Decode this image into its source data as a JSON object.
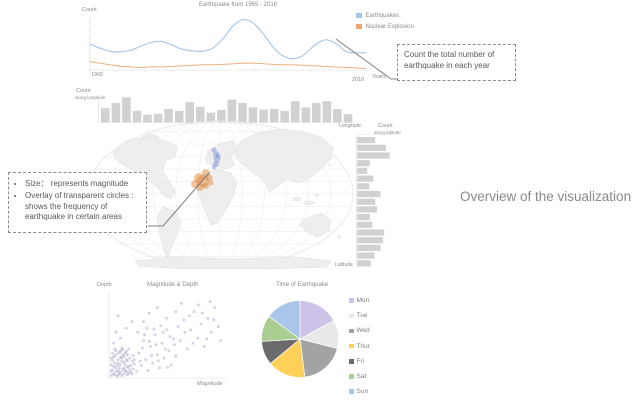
{
  "overview_label": "Overview of the visualization",
  "callouts": {
    "yearly": {
      "text": "Count the total number of earthquake in each year"
    },
    "map_notes": {
      "bullets": [
        "Size：  represents magnitude",
        "Overlay of transparent circles : shows the frequency of earthquake in certain areas"
      ]
    }
  },
  "map": {
    "land_color": "#eeeeee",
    "graticule_color": "#e9e9e9",
    "clusters": [
      {
        "name": "earthquake-cluster-blue",
        "color": "#8093d8",
        "opacity": 0.5,
        "circles": [
          [
            129,
            31,
            2.5
          ],
          [
            131,
            35,
            3
          ],
          [
            132,
            40,
            3.5
          ],
          [
            131,
            45,
            3
          ],
          [
            129,
            48,
            2.5
          ],
          [
            133,
            37,
            2.5
          ]
        ]
      },
      {
        "name": "earthquake-cluster-orange",
        "color": "#e0883a",
        "opacity": 0.5,
        "circles": [
          [
            121,
            54,
            4
          ],
          [
            114,
            59,
            5
          ],
          [
            110,
            65,
            4
          ],
          [
            118,
            62,
            6
          ],
          [
            124,
            59,
            3.5
          ],
          [
            115,
            68,
            4
          ],
          [
            121,
            67,
            3
          ],
          [
            126,
            64,
            2.5
          ]
        ]
      }
    ]
  },
  "chart_data": [
    {
      "type": "line",
      "title": "Earthquake from 1965 - 2016",
      "ylabel": "Count",
      "xlabel": "Years",
      "x_ticks": [
        "1965",
        "2016"
      ],
      "x_range": [
        1965,
        2016
      ],
      "ylim": [
        0,
        1
      ],
      "legend_position": "top-right",
      "series": [
        {
          "name": "Earthquakes",
          "color": "#a5c6e8",
          "values": [
            0.5,
            0.42,
            0.36,
            0.35,
            0.38,
            0.46,
            0.53,
            0.55,
            0.48,
            0.4,
            0.37,
            0.36,
            0.42,
            0.6,
            0.85,
            0.97,
            0.9,
            0.68,
            0.42,
            0.26,
            0.22,
            0.3,
            0.48,
            0.58,
            0.52,
            0.36,
            0.33,
            0.33
          ]
        },
        {
          "name": "Nuclear Explosion",
          "color": "#eca66e",
          "values": [
            0.16,
            0.13,
            0.1,
            0.07,
            0.06,
            0.05,
            0.06,
            0.06,
            0.07,
            0.08,
            0.09,
            0.1,
            0.1,
            0.11,
            0.12,
            0.13,
            0.13,
            0.12,
            0.11,
            0.1,
            0.1,
            0.09,
            0.08,
            0.07,
            0.06,
            0.05,
            0.04,
            0.03
          ]
        }
      ]
    },
    {
      "type": "bar",
      "title": "Count along longitude",
      "ylabel": "Count",
      "ylabel_sub": "along longitude",
      "xlabel": "Longitude",
      "bar_color": "#d1d1d1",
      "ylim": [
        0,
        1
      ],
      "values": [
        0.55,
        0.75,
        0.97,
        0.45,
        0.3,
        0.33,
        0.52,
        0.45,
        0.78,
        0.6,
        0.38,
        0.48,
        0.88,
        0.75,
        0.58,
        0.5,
        0.52,
        0.45,
        0.82,
        0.58,
        0.75,
        0.82,
        0.52,
        0.32
      ]
    },
    {
      "type": "bar",
      "orientation": "horizontal",
      "title": "Count along latitude",
      "ylabel": "Count",
      "ylabel_sub": "along latitude",
      "xlabel": "Latitude",
      "bar_color": "#d1d1d1",
      "ylim": [
        0,
        1
      ],
      "values": [
        0.5,
        0.8,
        0.9,
        0.35,
        0.28,
        0.45,
        0.33,
        0.65,
        0.5,
        0.55,
        0.35,
        0.42,
        0.75,
        0.72,
        0.65,
        0.48,
        0.38
      ]
    },
    {
      "type": "scatter",
      "title": "Magnitude & Depth",
      "xlabel": "Magnitude",
      "ylabel": "Depth",
      "color": "#9688bd",
      "xlim": [
        0,
        1
      ],
      "ylim": [
        0,
        1
      ],
      "points": [
        [
          0.02,
          0.03
        ],
        [
          0.03,
          0.1
        ],
        [
          0.04,
          0.05
        ],
        [
          0.05,
          0.18
        ],
        [
          0.02,
          0.24
        ],
        [
          0.06,
          0.08
        ],
        [
          0.07,
          0.15
        ],
        [
          0.03,
          0.3
        ],
        [
          0.08,
          0.04
        ],
        [
          0.09,
          0.12
        ],
        [
          0.05,
          0.27
        ],
        [
          0.1,
          0.07
        ],
        [
          0.11,
          0.2
        ],
        [
          0.06,
          0.33
        ],
        [
          0.12,
          0.1
        ],
        [
          0.08,
          0.22
        ],
        [
          0.13,
          0.05
        ],
        [
          0.09,
          0.31
        ],
        [
          0.14,
          0.16
        ],
        [
          0.1,
          0.25
        ],
        [
          0.15,
          0.08
        ],
        [
          0.11,
          0.36
        ],
        [
          0.16,
          0.13
        ],
        [
          0.12,
          0.28
        ],
        [
          0.17,
          0.06
        ],
        [
          0.13,
          0.19
        ],
        [
          0.18,
          0.24
        ],
        [
          0.14,
          0.09
        ],
        [
          0.19,
          0.15
        ],
        [
          0.15,
          0.32
        ],
        [
          0.2,
          0.05
        ],
        [
          0.16,
          0.21
        ],
        [
          0.21,
          0.11
        ],
        [
          0.17,
          0.35
        ],
        [
          0.22,
          0.17
        ],
        [
          0.04,
          0.14
        ],
        [
          0.07,
          0.29
        ],
        [
          0.02,
          0.08
        ],
        [
          0.05,
          0.04
        ],
        [
          0.1,
          0.16
        ],
        [
          0.13,
          0.26
        ],
        [
          0.03,
          0.21
        ],
        [
          0.06,
          0.12
        ],
        [
          0.09,
          0.06
        ],
        [
          0.12,
          0.34
        ],
        [
          0.15,
          0.22
        ],
        [
          0.18,
          0.1
        ],
        [
          0.21,
          0.27
        ],
        [
          0.04,
          0.25
        ],
        [
          0.08,
          0.18
        ],
        [
          0.11,
          0.03
        ],
        [
          0.14,
          0.3
        ],
        [
          0.17,
          0.14
        ],
        [
          0.2,
          0.2
        ],
        [
          0.02,
          0.16
        ],
        [
          0.05,
          0.35
        ],
        [
          0.08,
          0.09
        ],
        [
          0.11,
          0.24
        ],
        [
          0.16,
          0.28
        ],
        [
          0.19,
          0.07
        ],
        [
          0.22,
          0.22
        ],
        [
          0.07,
          0.02
        ],
        [
          0.1,
          0.32
        ],
        [
          0.13,
          0.12
        ],
        [
          0.16,
          0.04
        ],
        [
          0.24,
          0.08
        ],
        [
          0.26,
          0.3
        ],
        [
          0.28,
          0.15
        ],
        [
          0.3,
          0.45
        ],
        [
          0.32,
          0.22
        ],
        [
          0.34,
          0.09
        ],
        [
          0.36,
          0.38
        ],
        [
          0.38,
          0.18
        ],
        [
          0.4,
          0.52
        ],
        [
          0.42,
          0.28
        ],
        [
          0.44,
          0.12
        ],
        [
          0.46,
          0.42
        ],
        [
          0.48,
          0.24
        ],
        [
          0.5,
          0.58
        ],
        [
          0.52,
          0.33
        ],
        [
          0.54,
          0.16
        ],
        [
          0.56,
          0.47
        ],
        [
          0.58,
          0.26
        ],
        [
          0.6,
          0.62
        ],
        [
          0.25,
          0.55
        ],
        [
          0.29,
          0.36
        ],
        [
          0.33,
          0.6
        ],
        [
          0.37,
          0.27
        ],
        [
          0.41,
          0.4
        ],
        [
          0.45,
          0.63
        ],
        [
          0.49,
          0.35
        ],
        [
          0.53,
          0.5
        ],
        [
          0.57,
          0.4
        ],
        [
          0.27,
          0.2
        ],
        [
          0.31,
          0.52
        ],
        [
          0.35,
          0.44
        ],
        [
          0.39,
          0.59
        ],
        [
          0.43,
          0.21
        ],
        [
          0.47,
          0.55
        ],
        [
          0.51,
          0.13
        ],
        [
          0.62,
          0.45
        ],
        [
          0.65,
          0.7
        ],
        [
          0.68,
          0.35
        ],
        [
          0.71,
          0.58
        ],
        [
          0.74,
          0.8
        ],
        [
          0.77,
          0.48
        ],
        [
          0.8,
          0.65
        ],
        [
          0.83,
          0.38
        ],
        [
          0.86,
          0.72
        ],
        [
          0.89,
          0.55
        ],
        [
          0.92,
          0.85
        ],
        [
          0.95,
          0.62
        ],
        [
          0.63,
          0.9
        ],
        [
          0.7,
          0.75
        ],
        [
          0.78,
          0.88
        ],
        [
          0.85,
          0.47
        ],
        [
          0.91,
          0.7
        ],
        [
          0.35,
          0.78
        ],
        [
          0.42,
          0.85
        ],
        [
          0.5,
          0.72
        ],
        [
          0.58,
          0.8
        ],
        [
          0.66,
          0.55
        ],
        [
          0.73,
          0.42
        ],
        [
          0.81,
          0.78
        ],
        [
          0.88,
          0.92
        ],
        [
          0.3,
          0.68
        ],
        [
          0.97,
          0.45
        ],
        [
          0.06,
          0.55
        ],
        [
          0.1,
          0.48
        ],
        [
          0.04,
          0.42
        ],
        [
          0.15,
          0.6
        ],
        [
          0.2,
          0.68
        ],
        [
          0.08,
          0.75
        ]
      ]
    },
    {
      "type": "pie",
      "title": "Time of Earthquake",
      "legend_position": "right",
      "labels": [
        "Mon",
        "Tue",
        "Wed",
        "Thur",
        "Fri",
        "Sat",
        "Sun"
      ],
      "values": [
        17,
        12,
        19,
        16,
        10,
        11,
        15
      ],
      "colors": [
        "#cfc2e9",
        "#e9e9e9",
        "#a3a3a3",
        "#fdd159",
        "#6b6b6b",
        "#aacd92",
        "#a9c5e8"
      ]
    }
  ]
}
